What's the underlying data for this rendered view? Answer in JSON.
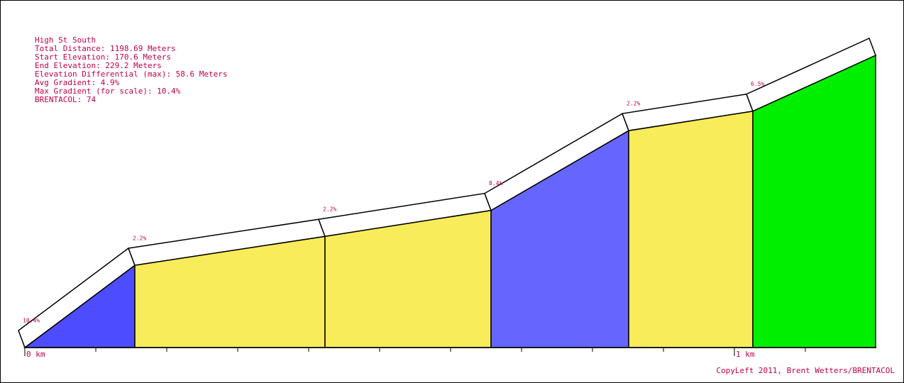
{
  "chart_data": {
    "type": "elevation",
    "info": [
      "High St South",
      "Total Distance: 1198.69 Meters",
      "Start Elevation: 170.6 Meters",
      "End Elevation: 229.2 Meters",
      "Elevation Differential (max): 58.6 Meters",
      "Avg Gradient: 4.9%",
      "Max Gradient (for scale): 10.4%",
      "BRENTACOL: 74"
    ],
    "footer": "CopyLeft 2011, Brent Wetters/BRENTACOL",
    "x": [
      0,
      0.155,
      0.423,
      0.657,
      0.851,
      1.026,
      1.199
    ],
    "values": [
      170.6,
      187.1,
      192.9,
      198.1,
      214.1,
      218.0,
      229.2
    ],
    "segments": [
      {
        "gradient": 10.4,
        "label": "10.4%",
        "color": "#4d4dff"
      },
      {
        "gradient": 2.2,
        "label": "2.2%",
        "color": "#f8ec5a"
      },
      {
        "gradient": 2.2,
        "label": "2.2%",
        "color": "#f8ec5a"
      },
      {
        "gradient": 8.4,
        "label": "8.4%",
        "color": "#6666ff"
      },
      {
        "gradient": 2.2,
        "label": "2.2%",
        "color": "#f8ec5a"
      },
      {
        "gradient": 6.5,
        "label": "6.5%",
        "color": "#00ee00"
      }
    ],
    "xlim": [
      0,
      1.2
    ],
    "ylim": [
      170.6,
      229.2
    ],
    "xticks": [
      {
        "value": 0,
        "label": "0 km"
      },
      {
        "value": 1,
        "label": "1 km"
      }
    ],
    "xminorticks": [
      0.1,
      0.2,
      0.3,
      0.4,
      0.5,
      0.6,
      0.7,
      0.8,
      0.9,
      1.1
    ]
  }
}
